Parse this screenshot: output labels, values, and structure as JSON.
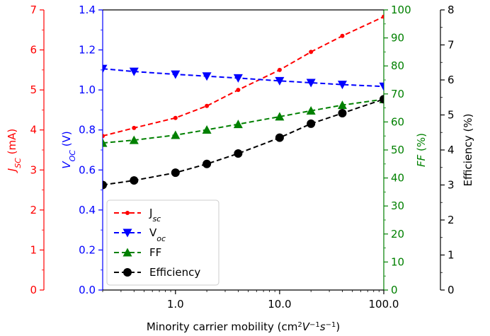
{
  "chart_data": {
    "type": "line",
    "xscale": "log",
    "x": [
      0.2,
      0.4,
      1.0,
      2.0,
      4.0,
      10.0,
      20.0,
      40.0,
      100.0
    ],
    "xlim": [
      0.2,
      100
    ],
    "xlabel_prefix": "Minority carrier mobility (cm",
    "xlabel_sup1": "2",
    "xlabel_mid": "V",
    "xlabel_sup2": "−1",
    "xlabel_s": "s",
    "xlabel_sup3": "−1",
    "xlabel_suffix": ")",
    "xticks": [
      {
        "value": 1,
        "label": "1.0"
      },
      {
        "value": 10,
        "label": "10.0"
      },
      {
        "value": 100,
        "label": "100.0"
      }
    ],
    "grid": false,
    "legend_position": "lower-left",
    "series": [
      {
        "key": "jsc",
        "legend_main": "J",
        "legend_sub": "sc",
        "axis": "jsc",
        "color": "#ff0000",
        "marker": "point",
        "values": [
          3.85,
          4.05,
          4.3,
          4.6,
          5.0,
          5.5,
          5.95,
          6.35,
          6.83
        ]
      },
      {
        "key": "voc",
        "legend_main": "V",
        "legend_sub": "oc",
        "axis": "voc",
        "color": "#0000ff",
        "marker": "triangle-down",
        "values": [
          1.185,
          1.17,
          1.155,
          1.145,
          1.135,
          1.12,
          1.11,
          1.1,
          1.09
        ]
      },
      {
        "key": "ff",
        "legend_main": "FF",
        "legend_sub": "",
        "axis": "ff",
        "color": "#008000",
        "marker": "triangle-up",
        "values": [
          52.5,
          53.5,
          55.3,
          57.2,
          59.2,
          61.9,
          64.0,
          66.0,
          68.1
        ]
      },
      {
        "key": "eff",
        "legend_main": "Efficiency",
        "legend_sub": "",
        "axis": "eff",
        "color": "#000000",
        "marker": "circle",
        "values": [
          3.0,
          3.13,
          3.35,
          3.6,
          3.9,
          4.35,
          4.75,
          5.05,
          5.45
        ]
      }
    ],
    "axes": {
      "jsc": {
        "color": "#ff0000",
        "range": [
          0,
          7
        ],
        "ticks": [
          "0",
          "1",
          "2",
          "3",
          "4",
          "5",
          "6",
          "7"
        ],
        "label_main": "J",
        "label_sub": "SC",
        "label_unit": " (mA)"
      },
      "voc": {
        "color": "#0000ff",
        "range": [
          0,
          1.5
        ],
        "ticks": [
          "0.0",
          "0.2",
          "0.4",
          "0.6",
          "0.8",
          "1.0",
          "1.2",
          "1.4"
        ],
        "label_main": "V",
        "label_sub": "OC",
        "label_unit": " (V)"
      },
      "ff": {
        "color": "#008000",
        "range": [
          0,
          100
        ],
        "ticks": [
          "0",
          "10",
          "20",
          "30",
          "40",
          "50",
          "60",
          "70",
          "80",
          "90",
          "100"
        ],
        "label_main": "FF",
        "label_sub": "",
        "label_unit": " (%)"
      },
      "eff": {
        "color": "#000000",
        "range": [
          0,
          8
        ],
        "ticks": [
          "0",
          "1",
          "2",
          "3",
          "4",
          "5",
          "6",
          "7",
          "8"
        ],
        "label_main": "Efficiency",
        "label_sub": "",
        "label_unit": " (%)"
      }
    }
  }
}
